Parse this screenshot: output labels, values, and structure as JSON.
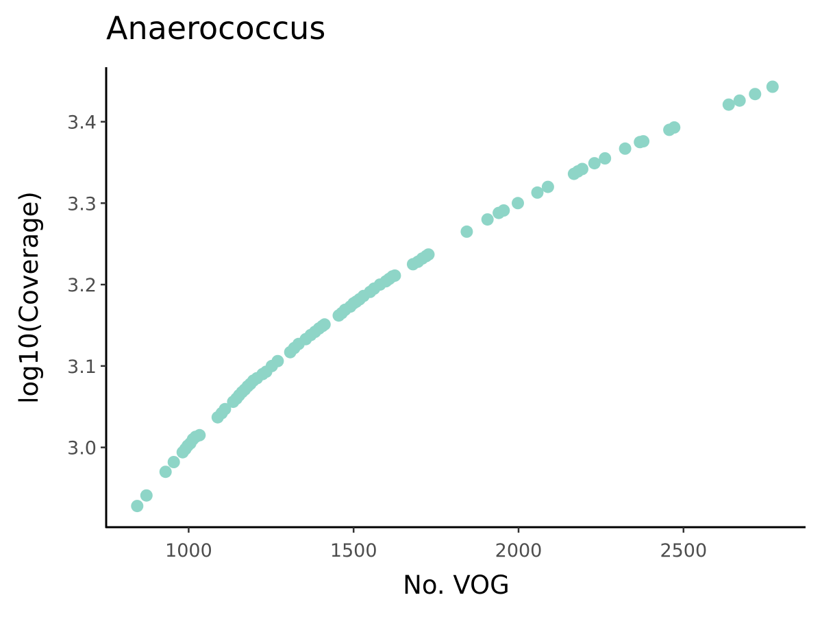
{
  "chart_data": {
    "type": "scatter",
    "title": "Anaerococcus",
    "xlabel": "No. VOG",
    "ylabel": "log10(Coverage)",
    "xlim": [
      750,
      2870
    ],
    "ylim": [
      2.902,
      3.467
    ],
    "xticks": [
      1000,
      1500,
      2000,
      2500
    ],
    "yticks": [
      3.0,
      3.1,
      3.2,
      3.3,
      3.4
    ],
    "xtick_labels": [
      "1000",
      "1500",
      "2000",
      "2500"
    ],
    "ytick_labels": [
      "3.0",
      "3.1",
      "3.2",
      "3.3",
      "3.4"
    ],
    "grid": false,
    "legend": "none",
    "point_color": "#8ed5c7",
    "points": [
      [
        844,
        2.928
      ],
      [
        872,
        2.941
      ],
      [
        930,
        2.97
      ],
      [
        955,
        2.982
      ],
      [
        982,
        2.994
      ],
      [
        990,
        2.998
      ],
      [
        997,
        3.002
      ],
      [
        1005,
        3.005
      ],
      [
        1013,
        3.01
      ],
      [
        1021,
        3.013
      ],
      [
        1033,
        3.015
      ],
      [
        1088,
        3.037
      ],
      [
        1100,
        3.042
      ],
      [
        1110,
        3.047
      ],
      [
        1135,
        3.056
      ],
      [
        1145,
        3.06
      ],
      [
        1153,
        3.064
      ],
      [
        1162,
        3.068
      ],
      [
        1170,
        3.071
      ],
      [
        1179,
        3.075
      ],
      [
        1187,
        3.078
      ],
      [
        1196,
        3.082
      ],
      [
        1207,
        3.085
      ],
      [
        1224,
        3.09
      ],
      [
        1235,
        3.093
      ],
      [
        1252,
        3.1
      ],
      [
        1270,
        3.106
      ],
      [
        1308,
        3.117
      ],
      [
        1320,
        3.122
      ],
      [
        1333,
        3.127
      ],
      [
        1355,
        3.133
      ],
      [
        1370,
        3.138
      ],
      [
        1383,
        3.142
      ],
      [
        1395,
        3.146
      ],
      [
        1405,
        3.149
      ],
      [
        1412,
        3.151
      ],
      [
        1455,
        3.162
      ],
      [
        1464,
        3.165
      ],
      [
        1474,
        3.169
      ],
      [
        1490,
        3.173
      ],
      [
        1500,
        3.177
      ],
      [
        1508,
        3.179
      ],
      [
        1518,
        3.182
      ],
      [
        1530,
        3.186
      ],
      [
        1550,
        3.191
      ],
      [
        1562,
        3.195
      ],
      [
        1580,
        3.2
      ],
      [
        1598,
        3.204
      ],
      [
        1608,
        3.207
      ],
      [
        1618,
        3.21
      ],
      [
        1625,
        3.211
      ],
      [
        1680,
        3.225
      ],
      [
        1695,
        3.228
      ],
      [
        1708,
        3.232
      ],
      [
        1720,
        3.235
      ],
      [
        1727,
        3.237
      ],
      [
        1843,
        3.265
      ],
      [
        1906,
        3.28
      ],
      [
        1940,
        3.288
      ],
      [
        1955,
        3.291
      ],
      [
        1998,
        3.3
      ],
      [
        2057,
        3.313
      ],
      [
        2089,
        3.32
      ],
      [
        2168,
        3.336
      ],
      [
        2180,
        3.339
      ],
      [
        2193,
        3.342
      ],
      [
        2230,
        3.349
      ],
      [
        2262,
        3.355
      ],
      [
        2323,
        3.367
      ],
      [
        2368,
        3.375
      ],
      [
        2378,
        3.376
      ],
      [
        2457,
        3.39
      ],
      [
        2472,
        3.393
      ],
      [
        2637,
        3.421
      ],
      [
        2670,
        3.426
      ],
      [
        2717,
        3.434
      ],
      [
        2770,
        3.443
      ]
    ]
  }
}
